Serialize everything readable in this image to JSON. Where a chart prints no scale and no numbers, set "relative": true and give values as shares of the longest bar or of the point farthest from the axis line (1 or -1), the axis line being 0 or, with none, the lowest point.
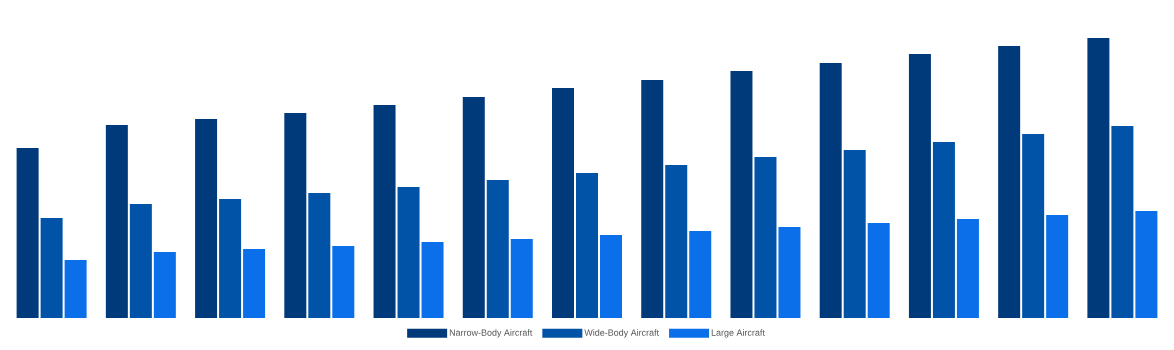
{
  "chart_data": {
    "type": "bar",
    "relative": true,
    "legend": "bottom",
    "categories": [
      null,
      null,
      null,
      null,
      null,
      null,
      null,
      null,
      null,
      null,
      null,
      null,
      null
    ],
    "series": [
      {
        "name": "Narrow-Body Aircraft",
        "color": "#003a7a",
        "values": [
          0.607,
          0.689,
          0.711,
          0.732,
          0.761,
          0.789,
          0.821,
          0.85,
          0.882,
          0.911,
          0.943,
          0.971,
          1
        ]
      },
      {
        "name": "Wide-Body Aircraft",
        "color": "#0053a6",
        "values": [
          0.357,
          0.407,
          0.425,
          0.446,
          0.468,
          0.493,
          0.518,
          0.546,
          0.575,
          0.6,
          0.629,
          0.657,
          0.686
        ]
      },
      {
        "name": "Large Aircraft",
        "color": "#0a6fe8",
        "values": [
          0.207,
          0.236,
          0.246,
          0.257,
          0.271,
          0.282,
          0.296,
          0.311,
          0.325,
          0.339,
          0.354,
          0.368,
          0.382
        ]
      }
    ]
  }
}
